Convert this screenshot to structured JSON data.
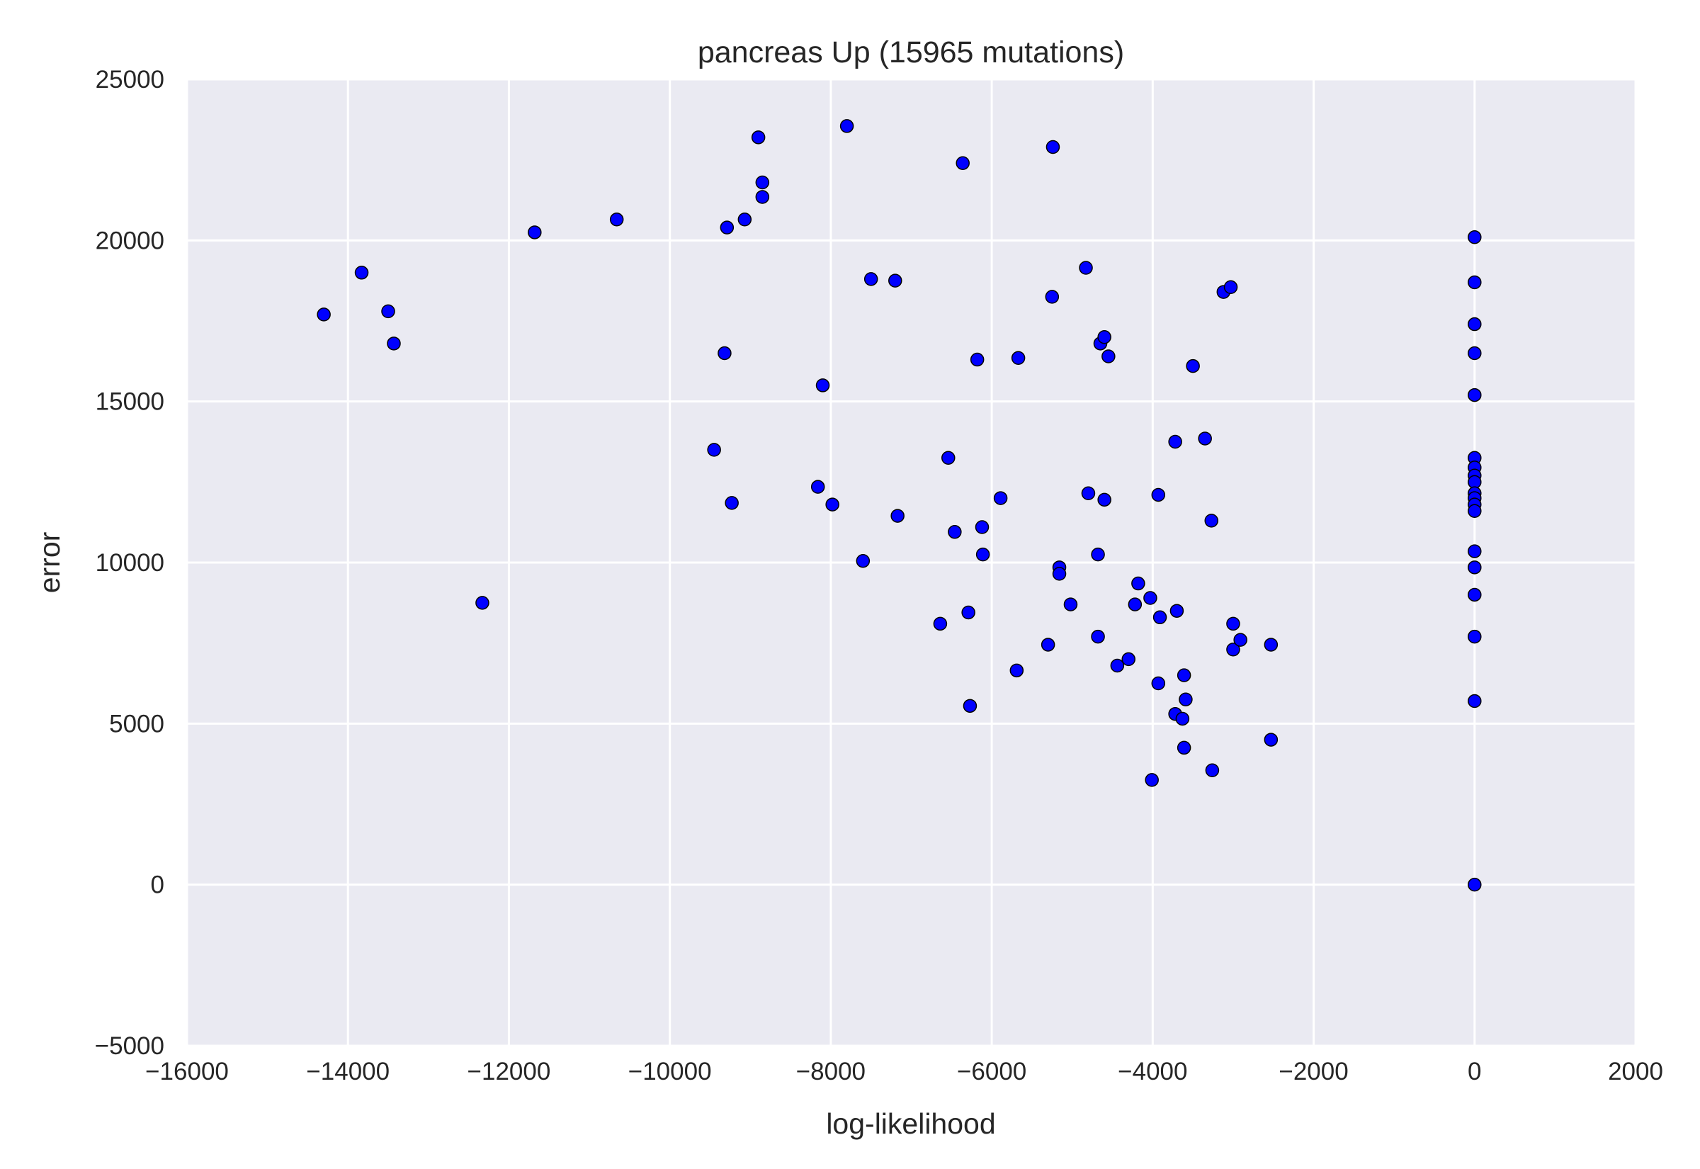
{
  "chart_data": {
    "type": "scatter",
    "title": "pancreas Up (15965 mutations)",
    "xlabel": "log-likelihood",
    "ylabel": "error",
    "xlim": [
      -16000,
      2000
    ],
    "ylim": [
      -5000,
      25000
    ],
    "xticks": [
      -16000,
      -14000,
      -12000,
      -10000,
      -8000,
      -6000,
      -4000,
      -2000,
      0,
      2000
    ],
    "xtick_labels": [
      "−16000",
      "−14000",
      "−12000",
      "−10000",
      "−8000",
      "−6000",
      "−4000",
      "−2000",
      "0",
      "2000"
    ],
    "yticks": [
      -5000,
      0,
      5000,
      10000,
      15000,
      20000,
      25000
    ],
    "ytick_labels": [
      "−5000",
      "0",
      "5000",
      "10000",
      "15000",
      "20000",
      "25000"
    ],
    "grid": true,
    "background_color": "#eaeaf2",
    "grid_color": "#ffffff",
    "marker_color": "#0000ff",
    "marker_edge_color": "#000000",
    "points": [
      [
        -14300,
        17700
      ],
      [
        -13830,
        19000
      ],
      [
        -13500,
        17800
      ],
      [
        -13430,
        16800
      ],
      [
        -12330,
        8750
      ],
      [
        -11680,
        20250
      ],
      [
        -10660,
        20650
      ],
      [
        -9450,
        13500
      ],
      [
        -9320,
        16500
      ],
      [
        -9290,
        20400
      ],
      [
        -9230,
        11850
      ],
      [
        -9070,
        20650
      ],
      [
        -8900,
        23200
      ],
      [
        -8850,
        21800
      ],
      [
        -8850,
        21350
      ],
      [
        -8160,
        12350
      ],
      [
        -8100,
        15500
      ],
      [
        -7980,
        11800
      ],
      [
        -7800,
        23550
      ],
      [
        -7600,
        10050
      ],
      [
        -7500,
        18800
      ],
      [
        -7200,
        18750
      ],
      [
        -7170,
        11450
      ],
      [
        -6640,
        8100
      ],
      [
        -6540,
        13250
      ],
      [
        -6460,
        10950
      ],
      [
        -6360,
        22400
      ],
      [
        -6290,
        8450
      ],
      [
        -6270,
        5550
      ],
      [
        -6180,
        16300
      ],
      [
        -6120,
        11100
      ],
      [
        -6110,
        10250
      ],
      [
        -5890,
        12000
      ],
      [
        -5690,
        6650
      ],
      [
        -5670,
        16350
      ],
      [
        -5300,
        7450
      ],
      [
        -5250,
        18250
      ],
      [
        -5240,
        22900
      ],
      [
        -5160,
        9850
      ],
      [
        -5160,
        9650
      ],
      [
        -5020,
        8700
      ],
      [
        -4830,
        19150
      ],
      [
        -4800,
        12150
      ],
      [
        -4680,
        10250
      ],
      [
        -4680,
        7700
      ],
      [
        -4650,
        16800
      ],
      [
        -4600,
        17000
      ],
      [
        -4600,
        11950
      ],
      [
        -4550,
        16400
      ],
      [
        -4440,
        6800
      ],
      [
        -4300,
        7000
      ],
      [
        -4220,
        8700
      ],
      [
        -4180,
        9350
      ],
      [
        -4030,
        8900
      ],
      [
        -4010,
        3250
      ],
      [
        -3930,
        12100
      ],
      [
        -3930,
        6250
      ],
      [
        -3910,
        8300
      ],
      [
        -3720,
        13750
      ],
      [
        -3720,
        5300
      ],
      [
        -3700,
        8500
      ],
      [
        -3630,
        5150
      ],
      [
        -3610,
        6500
      ],
      [
        -3610,
        4250
      ],
      [
        -3590,
        5750
      ],
      [
        -3500,
        16100
      ],
      [
        -3350,
        13850
      ],
      [
        -3270,
        11300
      ],
      [
        -3260,
        3550
      ],
      [
        -3120,
        18400
      ],
      [
        -3030,
        18550
      ],
      [
        -3000,
        8100
      ],
      [
        -3000,
        7300
      ],
      [
        -2910,
        7600
      ],
      [
        -2530,
        7450
      ],
      [
        -2530,
        4500
      ],
      [
        0,
        20100
      ],
      [
        0,
        18700
      ],
      [
        0,
        17400
      ],
      [
        0,
        16500
      ],
      [
        0,
        15200
      ],
      [
        0,
        13250
      ],
      [
        0,
        12950
      ],
      [
        0,
        12700
      ],
      [
        0,
        12500
      ],
      [
        0,
        12150
      ],
      [
        0,
        12000
      ],
      [
        0,
        11800
      ],
      [
        0,
        11600
      ],
      [
        0,
        10350
      ],
      [
        0,
        9850
      ],
      [
        0,
        9000
      ],
      [
        0,
        7700
      ],
      [
        0,
        5700
      ],
      [
        0,
        0
      ]
    ]
  }
}
